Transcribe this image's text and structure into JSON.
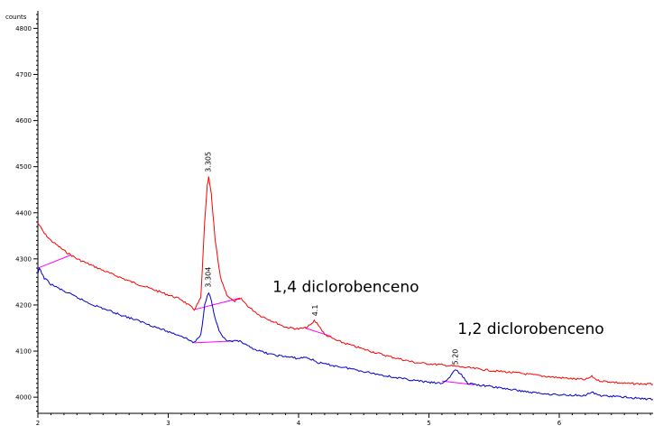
{
  "chart_data": {
    "type": "line",
    "ylabel": "counts",
    "xlim": [
      2,
      6.72
    ],
    "ylim": [
      3965,
      4838
    ],
    "xticks": [
      2,
      3,
      4,
      5,
      6
    ],
    "yticks": [
      4000,
      4100,
      4200,
      4300,
      4400,
      4500,
      4600,
      4700,
      4800
    ],
    "grid": false,
    "colors": {
      "series_a": "#ff0000",
      "series_b": "#0000cc",
      "baseline": "#ff00ff"
    },
    "series": [
      {
        "color": "#ff0000",
        "x": [
          2.0,
          2.05,
          2.1,
          2.2,
          2.3,
          2.5,
          2.7,
          2.9,
          3.0,
          3.1,
          3.2,
          3.25,
          3.28,
          3.3,
          3.31,
          3.33,
          3.36,
          3.4,
          3.45,
          3.5,
          3.56,
          3.62,
          3.7,
          3.8,
          3.9,
          4.0,
          4.05,
          4.1,
          4.12,
          4.15,
          4.2,
          4.3,
          4.5,
          4.7,
          4.9,
          5.1,
          5.3,
          5.5,
          5.7,
          5.9,
          6.1,
          6.2,
          6.25,
          6.3,
          6.5,
          6.72
        ],
        "y": [
          4378,
          4355,
          4340,
          4318,
          4300,
          4275,
          4252,
          4232,
          4222,
          4212,
          4190,
          4215,
          4380,
          4460,
          4477,
          4440,
          4340,
          4260,
          4222,
          4208,
          4213,
          4195,
          4178,
          4165,
          4152,
          4148,
          4150,
          4158,
          4166,
          4158,
          4136,
          4122,
          4104,
          4088,
          4075,
          4070,
          4064,
          4057,
          4052,
          4045,
          4040,
          4038,
          4045,
          4036,
          4030,
          4028
        ]
      },
      {
        "color": "#0000cc",
        "x": [
          2.0,
          2.01,
          2.05,
          2.1,
          2.2,
          2.4,
          2.6,
          2.8,
          3.0,
          3.1,
          3.2,
          3.25,
          3.28,
          3.3,
          3.31,
          3.33,
          3.36,
          3.4,
          3.45,
          3.5,
          3.55,
          3.6,
          3.7,
          3.8,
          3.9,
          4.0,
          4.05,
          4.1,
          4.15,
          4.2,
          4.4,
          4.6,
          4.8,
          5.0,
          5.1,
          5.15,
          5.2,
          5.25,
          5.3,
          5.4,
          5.6,
          5.8,
          6.0,
          6.2,
          6.25,
          6.3,
          6.5,
          6.72
        ],
        "y": [
          4266,
          4280,
          4258,
          4245,
          4230,
          4203,
          4182,
          4163,
          4142,
          4133,
          4118,
          4135,
          4200,
          4222,
          4228,
          4210,
          4170,
          4138,
          4120,
          4122,
          4121,
          4112,
          4100,
          4092,
          4088,
          4084,
          4087,
          4082,
          4075,
          4072,
          4062,
          4050,
          4040,
          4032,
          4030,
          4040,
          4060,
          4048,
          4030,
          4026,
          4018,
          4010,
          4005,
          4004,
          4011,
          4004,
          4000,
          3995
        ]
      }
    ],
    "baselines": [
      {
        "x": [
          2.0,
          2.25
        ],
        "y": [
          4280,
          4308
        ]
      },
      {
        "x": [
          3.2,
          3.55
        ],
        "y": [
          4190,
          4215
        ]
      },
      {
        "x": [
          3.2,
          3.5
        ],
        "y": [
          4118,
          4122
        ]
      },
      {
        "x": [
          4.05,
          4.25
        ],
        "y": [
          4150,
          4132
        ]
      },
      {
        "x": [
          5.1,
          5.35
        ],
        "y": [
          4035,
          4027
        ]
      }
    ],
    "peak_labels": [
      {
        "text": "3.305",
        "x": 3.305,
        "y": 4482
      },
      {
        "text": "3.304",
        "x": 3.304,
        "y": 4232
      },
      {
        "text": "4.1",
        "x": 4.125,
        "y": 4170
      },
      {
        "text": "5.20",
        "x": 5.2,
        "y": 4064
      }
    ],
    "annotations": [
      {
        "text": "1,4 diclorobenceno",
        "x": 3.8,
        "y": 4228
      },
      {
        "text": "1,2 diclorobenceno",
        "x": 5.22,
        "y": 4137
      }
    ]
  }
}
